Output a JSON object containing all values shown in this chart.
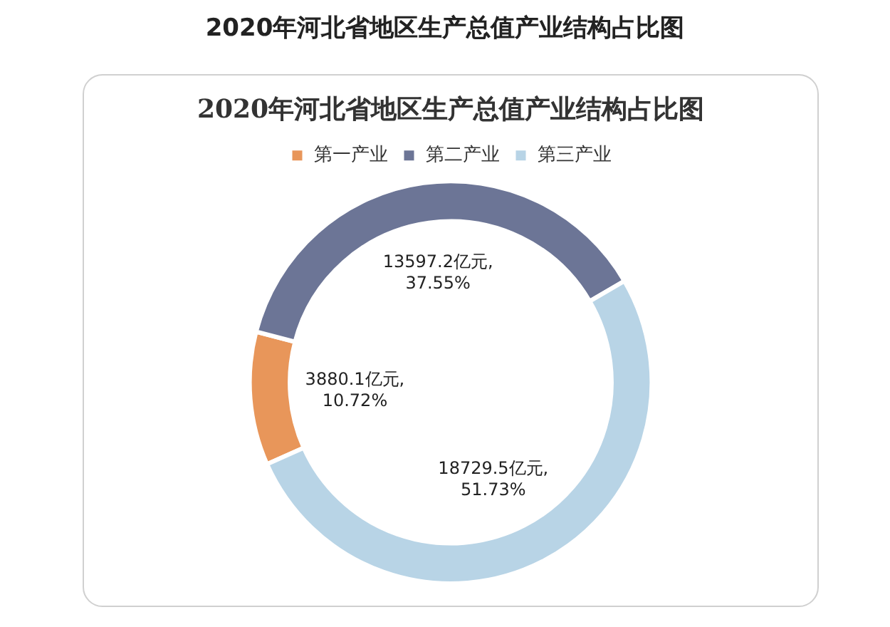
{
  "chart_data": {
    "type": "donut",
    "title": "2020年河北省地区生产总值产业结构占比图",
    "subtitle": "2020年河北省地区生产总值产业结构占比图",
    "categories": [
      "第一产业",
      "第二产业",
      "第三产业"
    ],
    "values": [
      3880.1,
      13597.2,
      18729.5
    ],
    "colors": [
      "#e8965a",
      "#6c7596",
      "#b8d4e6"
    ],
    "value_labels": [
      "3880.1亿元,\n10.72%",
      "13597.2亿元,\n37.55%",
      "18729.5亿元,\n51.73%"
    ],
    "legend": "top"
  }
}
